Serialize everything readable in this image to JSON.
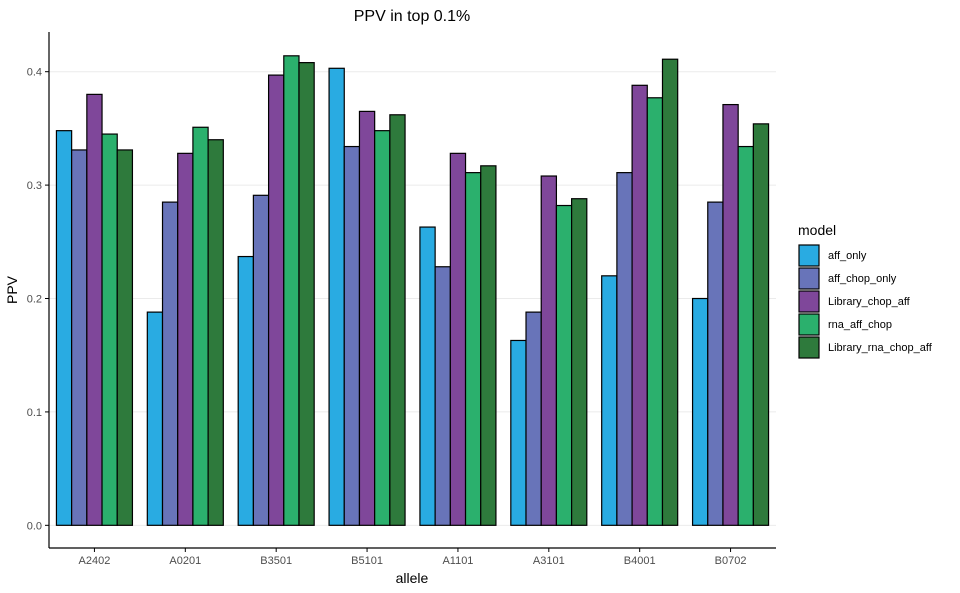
{
  "chart_data": {
    "type": "bar",
    "title": "PPV in top 0.1%",
    "xlabel": "allele",
    "ylabel": "PPV",
    "ylim": [
      -0.02,
      0.435
    ],
    "yticks": [
      0.0,
      0.1,
      0.2,
      0.3,
      0.4
    ],
    "ytick_labels": [
      "0.0",
      "0.1",
      "0.2",
      "0.3",
      "0.4"
    ],
    "grid": true,
    "legend_title": "model",
    "legend_position": "right",
    "categories": [
      "A2402",
      "A0201",
      "B3501",
      "B5101",
      "A1101",
      "A3101",
      "B4001",
      "B0702"
    ],
    "series": [
      {
        "name": "aff_only",
        "color": "#29abe2",
        "values": [
          0.348,
          0.188,
          0.237,
          0.403,
          0.263,
          0.163,
          0.22,
          0.2
        ]
      },
      {
        "name": "aff_chop_only",
        "color": "#6874b9",
        "values": [
          0.331,
          0.285,
          0.291,
          0.334,
          0.228,
          0.188,
          0.311,
          0.285
        ]
      },
      {
        "name": "Library_chop_aff",
        "color": "#7f479a",
        "values": [
          0.38,
          0.328,
          0.397,
          0.365,
          0.328,
          0.308,
          0.388,
          0.371
        ]
      },
      {
        "name": "rna_aff_chop",
        "color": "#2bb06d",
        "values": [
          0.345,
          0.351,
          0.414,
          0.348,
          0.311,
          0.282,
          0.377,
          0.334
        ]
      },
      {
        "name": "Library_rna_chop_aff",
        "color": "#2e7a3c",
        "values": [
          0.331,
          0.34,
          0.408,
          0.362,
          0.317,
          0.288,
          0.411,
          0.354
        ]
      }
    ]
  }
}
